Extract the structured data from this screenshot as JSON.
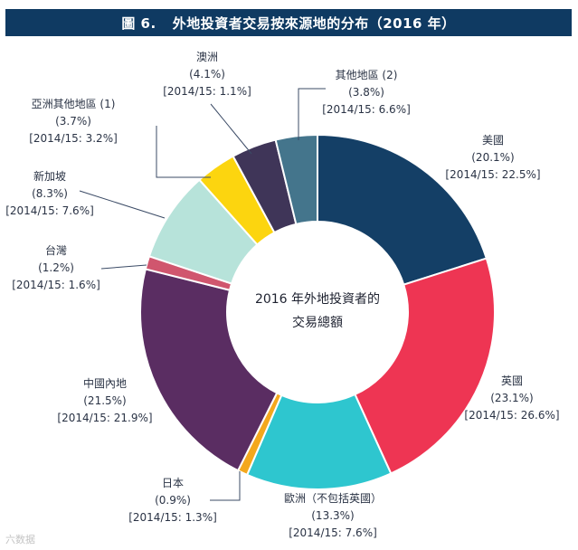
{
  "title": {
    "figure_no": "圖 6.",
    "text": "外地投資者交易按來源地的分布（2016 年）"
  },
  "center_label": {
    "line1": "2016 年外地投資者的",
    "line2": "交易總額"
  },
  "watermark": "六数据",
  "chart_data": {
    "type": "pie",
    "variant": "donut",
    "title": "外地投資者交易按來源地的分布（2016 年）",
    "slices": [
      {
        "name": "美國",
        "value": 20.1,
        "value_label": "(20.1%)",
        "prev_label": "[2014/15: 22.5%]",
        "color": "#143f66"
      },
      {
        "name": "英國",
        "value": 23.1,
        "value_label": "(23.1%)",
        "prev_label": "[2014/15: 26.6%]",
        "color": "#ee3553"
      },
      {
        "name": "歐洲（不包括英國）",
        "value": 13.3,
        "value_label": "(13.3%)",
        "prev_label": "[2014/15: 7.6%]",
        "color": "#2ec6cf"
      },
      {
        "name": "日本",
        "value": 0.9,
        "value_label": "(0.9%)",
        "prev_label": "[2014/15: 1.3%]",
        "color": "#f4a81d"
      },
      {
        "name": "中國內地",
        "value": 21.5,
        "value_label": "(21.5%)",
        "prev_label": "[2014/15: 21.9%]",
        "color": "#5a2d62"
      },
      {
        "name": "台灣",
        "value": 1.2,
        "value_label": "(1.2%)",
        "prev_label": "[2014/15: 1.6%]",
        "color": "#d0566e"
      },
      {
        "name": "新加坡",
        "value": 8.3,
        "value_label": "(8.3%)",
        "prev_label": "[2014/15: 7.6%]",
        "color": "#b7e3da"
      },
      {
        "name": "亞洲其他地區 (1)",
        "value": 3.7,
        "value_label": "(3.7%)",
        "prev_label": "[2014/15: 3.2%]",
        "color": "#fcd50f"
      },
      {
        "name": "澳洲",
        "value": 4.1,
        "value_label": "(4.1%)",
        "prev_label": "[2014/15: 1.1%]",
        "color": "#3f3558"
      },
      {
        "name": "其他地區 (2)",
        "value": 3.8,
        "value_label": "(3.8%)",
        "prev_label": "[2014/15: 6.6%]",
        "color": "#44758c"
      }
    ]
  }
}
